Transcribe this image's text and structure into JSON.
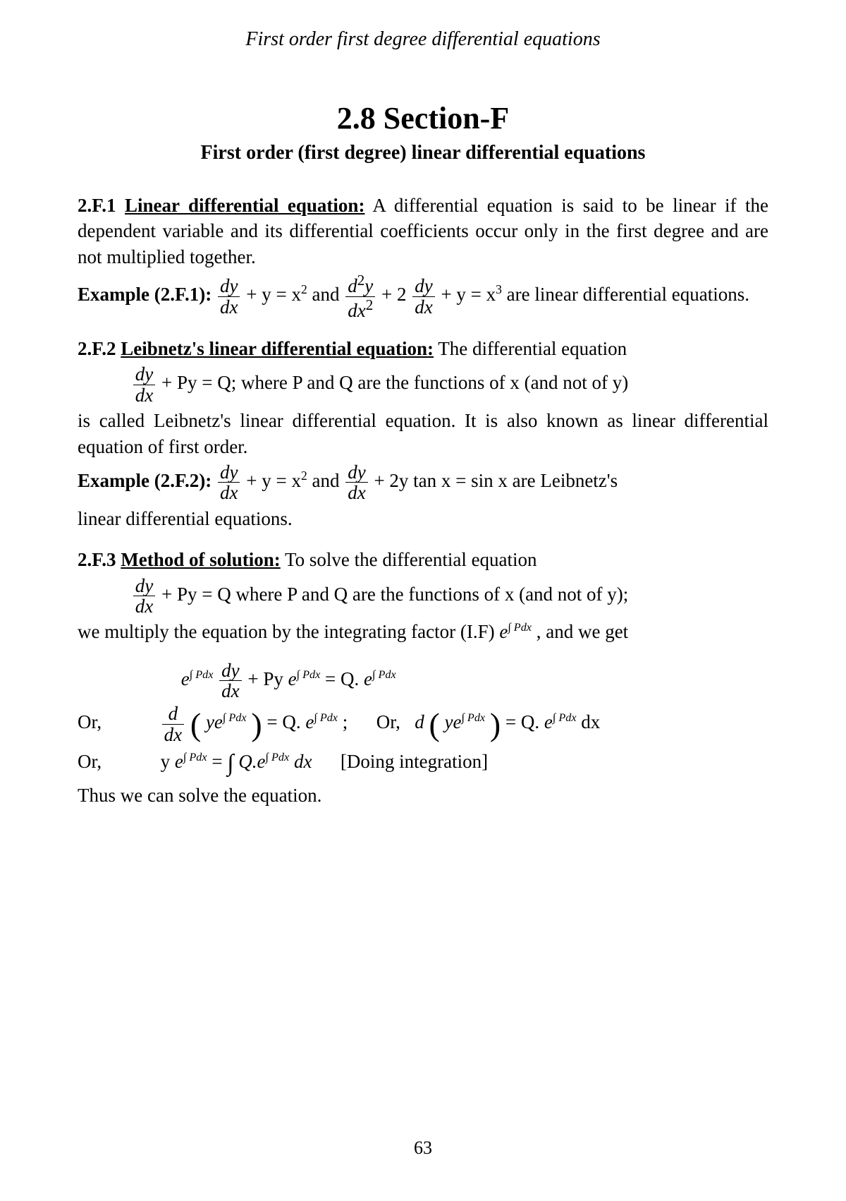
{
  "runningHeader": "First order first degree differential equations",
  "sectionTitle": "2.8 Section-F",
  "subtitle": "First order (first degree) linear differential equations",
  "s1": {
    "label": "2.F.1",
    "heading": "Linear differential equation:",
    "text": " A differential equation is said to be linear if the dependent variable and its differential coefficients occur only in the first degree and are not multiplied together."
  },
  "ex1": {
    "label": "Example (2.F.1):",
    "tail": " are linear differential equations.",
    "and": " and ",
    "eq1_rhs": " + y = x",
    "eq2_mid": " + 2",
    "eq2_tail": " + y = x",
    "dy": "dy",
    "dx": "dx",
    "d2y": "d",
    "2": "2",
    "3": "3",
    "y": "y"
  },
  "s2": {
    "label": "2.F.2",
    "heading": "Leibnetz's linear differential equation:",
    "text": " The differential equation",
    "inline": " + Py = Q; where P and Q are the functions of x (and not of y)",
    "text2": "is called Leibnetz's linear differential equation. It is also known as linear differential equation of first order."
  },
  "ex2": {
    "label": "Example (2.F.2):",
    "eq1_rhs": " + y = x",
    "and": " and ",
    "eq2_rhs": " + 2y tan x = sin x are Leibnetz's",
    "tail": "linear differential equations."
  },
  "s3": {
    "label": "2.F.3",
    "heading": "Method of solution:",
    "text": " To solve the differential equation",
    "inline": " + Py = Q where P and Q are the functions of x (and not of y);",
    "text2a": "we multiply the equation by the integrating factor (I.F) ",
    "text2b": " , and we get"
  },
  "math": {
    "e": "e",
    "pdx": "∫ Pdx",
    "dy": "dy",
    "dx": "dx",
    "d": "d",
    "line1_mid": " + Py ",
    "line1_rhs": " = Q. ",
    "or": "Or,",
    "line2_mid": " = Q. ",
    "semi": " ;",
    "line2b_rhs": " dx",
    "line3_pre": "y ",
    "line3_eq": " = ",
    "line3_int": "∫",
    "line3_Q": "Q.",
    "line3_dx": "dx",
    "note": "[Doing integration]",
    "final": "Thus we can solve the equation.",
    "ye": "ye"
  },
  "pageNum": "63"
}
